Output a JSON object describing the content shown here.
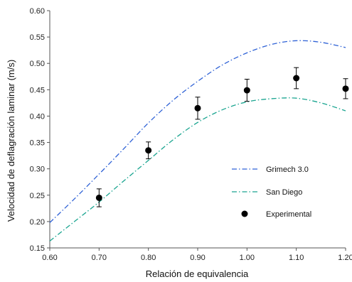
{
  "chart_data": {
    "type": "line",
    "title": "",
    "xlabel": "Relación de equivalencia",
    "ylabel": "Velocidad de deflagración laminar (m/s)",
    "xlim": [
      0.6,
      1.2
    ],
    "ylim": [
      0.15,
      0.6
    ],
    "x_ticks": [
      "0.60",
      "0.70",
      "0.80",
      "0.90",
      "1.00",
      "1.10",
      "1.20"
    ],
    "y_ticks": [
      "0.15",
      "0.20",
      "0.25",
      "0.30",
      "0.35",
      "0.40",
      "0.45",
      "0.50",
      "0.55",
      "0.60"
    ],
    "grid": false,
    "legend_position": "right",
    "series": [
      {
        "name": "Grimech 3.0",
        "style": "dash-dot",
        "color": "#2f62d6",
        "x": [
          0.6,
          0.65,
          0.7,
          0.75,
          0.8,
          0.85,
          0.9,
          0.95,
          1.0,
          1.05,
          1.1,
          1.15,
          1.2
        ],
        "y": [
          0.198,
          0.243,
          0.29,
          0.338,
          0.387,
          0.43,
          0.466,
          0.497,
          0.52,
          0.536,
          0.543,
          0.54,
          0.53
        ]
      },
      {
        "name": "San Diego",
        "style": "dash-dot",
        "color": "#1aa590",
        "x": [
          0.6,
          0.65,
          0.7,
          0.75,
          0.8,
          0.85,
          0.9,
          0.95,
          1.0,
          1.05,
          1.1,
          1.15,
          1.2
        ],
        "y": [
          0.163,
          0.2,
          0.237,
          0.277,
          0.316,
          0.355,
          0.388,
          0.412,
          0.427,
          0.433,
          0.434,
          0.425,
          0.41
        ]
      },
      {
        "name": "Experimental",
        "style": "markers",
        "color": "#000000",
        "x": [
          0.7,
          0.8,
          0.9,
          1.0,
          1.1,
          1.2
        ],
        "y": [
          0.245,
          0.335,
          0.415,
          0.449,
          0.472,
          0.452
        ],
        "error": [
          0.017,
          0.016,
          0.021,
          0.021,
          0.02,
          0.019
        ]
      }
    ]
  }
}
